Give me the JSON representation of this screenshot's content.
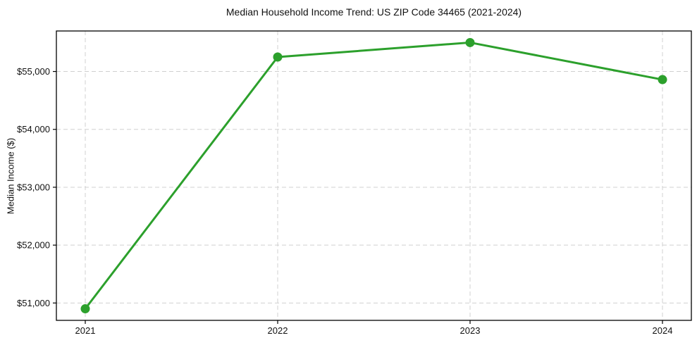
{
  "chart_data": {
    "type": "line",
    "title": "Median Household Income Trend: US ZIP Code 34465 (2021-2024)",
    "xlabel": "",
    "ylabel": "Median Income ($)",
    "x": [
      2021,
      2022,
      2023,
      2024
    ],
    "xtick_labels": [
      "2021",
      "2022",
      "2023",
      "2024"
    ],
    "series": [
      {
        "name": "Median Household Income",
        "values": [
          50900,
          55250,
          55500,
          54860
        ]
      }
    ],
    "ylim": [
      50700,
      55700
    ],
    "yticks": [
      51000,
      52000,
      53000,
      54000,
      55000
    ],
    "ytick_labels": [
      "$51,000",
      "$52,000",
      "$53,000",
      "$54,000",
      "$55,000"
    ],
    "grid": true,
    "grid_style": "dashed",
    "legend": false,
    "colors": {
      "line": "#2ca02c",
      "marker": "#2ca02c",
      "grid": "#d0d0d0",
      "spine": "#000000",
      "text": "#111111",
      "background": "#ffffff"
    }
  }
}
